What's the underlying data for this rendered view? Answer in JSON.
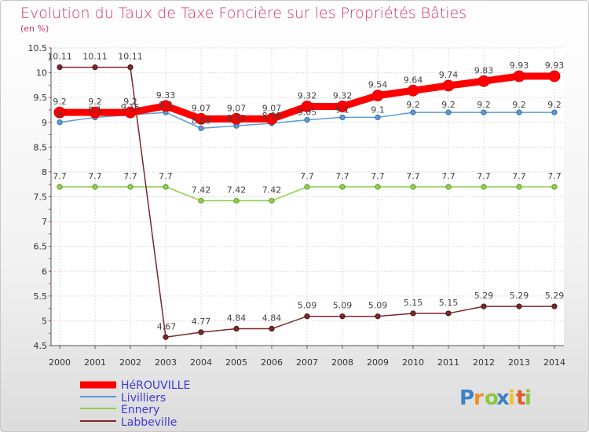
{
  "chart_data": {
    "type": "line",
    "title": "Evolution du Taux de Taxe Foncière sur les Propriétés Bâties",
    "subtitle": "(en %)",
    "x": [
      "2000",
      "2001",
      "2002",
      "2003",
      "2004",
      "2005",
      "2006",
      "2007",
      "2008",
      "2009",
      "2010",
      "2011",
      "2012",
      "2013",
      "2014"
    ],
    "yticks": [
      "4.5",
      "5",
      "5.5",
      "6",
      "6.5",
      "7",
      "7.5",
      "8",
      "8.5",
      "9",
      "9.5",
      "10",
      "10.5"
    ],
    "ylim": [
      4.5,
      10.5
    ],
    "grid": true,
    "series": [
      {
        "name": "HéROUVILLE",
        "color": "#ff0000",
        "values": [
          9.2,
          9.2,
          9.2,
          9.33,
          9.07,
          9.07,
          9.07,
          9.32,
          9.32,
          9.54,
          9.64,
          9.74,
          9.83,
          9.93,
          9.93
        ],
        "labels": [
          "9.2",
          "9.2",
          "9.2",
          "9.33",
          "9.07",
          "9.07",
          "9.07",
          "9.32",
          "9.32",
          "9.54",
          "9.64",
          "9.74",
          "9.83",
          "9.93",
          "9.93"
        ]
      },
      {
        "name": "Livilliers",
        "color": "#5b9bd5",
        "values": [
          9.0,
          9.1,
          9.15,
          9.2,
          8.88,
          8.93,
          8.98,
          9.05,
          9.1,
          9.1,
          9.2,
          9.2,
          9.2,
          9.2,
          9.2
        ],
        "labels": [
          "9",
          "9.1",
          "9.15",
          "9.2",
          "8.88",
          "8.93",
          "8.98",
          "9.05",
          "9.1",
          "9.1",
          "9.2",
          "9.2",
          "9.2",
          "9.2",
          "9.2"
        ]
      },
      {
        "name": "Ennery",
        "color": "#8fd14f",
        "values": [
          7.7,
          7.7,
          7.7,
          7.7,
          7.42,
          7.42,
          7.42,
          7.7,
          7.7,
          7.7,
          7.7,
          7.7,
          7.7,
          7.7,
          7.7
        ],
        "labels": [
          "7.7",
          "7.7",
          "7.7",
          "7.7",
          "7.42",
          "7.42",
          "7.42",
          "7.7",
          "7.7",
          "7.7",
          "7.7",
          "7.7",
          "7.7",
          "7.7",
          "7.7"
        ]
      },
      {
        "name": "Labbeville",
        "color": "#7a2828",
        "values": [
          10.11,
          10.11,
          10.11,
          4.67,
          4.77,
          4.84,
          4.84,
          5.09,
          5.09,
          5.09,
          5.15,
          5.15,
          5.29,
          5.29,
          5.29
        ],
        "labels": [
          "10.11",
          "10.11",
          "10.11",
          "4.67",
          "4.77",
          "4.84",
          "4.84",
          "5.09",
          "5.09",
          "5.09",
          "5.15",
          "5.15",
          "5.29",
          "5.29",
          "5.29"
        ]
      }
    ]
  },
  "logo": {
    "letters": [
      "P",
      "r",
      "o",
      "x",
      "i",
      "t",
      "i"
    ],
    "colors": [
      "#3b82c4",
      "#f28c28",
      "#8cc63f",
      "#3b82c4",
      "#f2c028",
      "#e05a2a",
      "#8cc63f"
    ]
  }
}
